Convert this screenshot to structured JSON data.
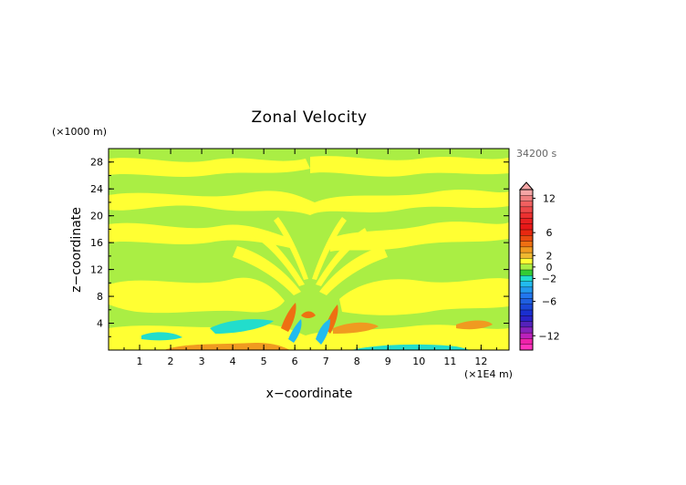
{
  "chart_data": {
    "type": "heatmap",
    "title": "Zonal Velocity",
    "xlabel": "x−coordinate",
    "ylabel": "z−coordinate",
    "x_unit": "(×1E4 m)",
    "y_unit": "(×1000 m)",
    "time_label": "34200 s",
    "xlim": [
      0,
      12.9
    ],
    "ylim": [
      0,
      30
    ],
    "x_ticks": [
      "1",
      "2",
      "3",
      "4",
      "5",
      "6",
      "7",
      "8",
      "9",
      "10",
      "11",
      "12"
    ],
    "y_ticks": [
      "4",
      "8",
      "12",
      "16",
      "20",
      "24",
      "28"
    ],
    "colorbar": {
      "labels": [
        "12",
        "6",
        "2",
        "0",
        "−2",
        "−6",
        "−12"
      ],
      "label_values": [
        12,
        6,
        2,
        0,
        -2,
        -6,
        -12
      ],
      "extend": "max",
      "levels": [
        {
          "value": 13,
          "color": "#f5a5a5"
        },
        {
          "value": 12,
          "color": "#f07f7f"
        },
        {
          "value": 11,
          "color": "#f06060"
        },
        {
          "value": 10,
          "color": "#ee4848"
        },
        {
          "value": 9,
          "color": "#ec3030"
        },
        {
          "value": 8,
          "color": "#e82020"
        },
        {
          "value": 7,
          "color": "#e81818"
        },
        {
          "value": 6,
          "color": "#e82810"
        },
        {
          "value": 5,
          "color": "#ea4a10"
        },
        {
          "value": 4,
          "color": "#ee7012"
        },
        {
          "value": 3,
          "color": "#f09a20"
        },
        {
          "value": 2,
          "color": "#f0b830"
        },
        {
          "value": 1,
          "color": "#ffff33"
        },
        {
          "value": 0,
          "color": "#aaee44"
        },
        {
          "value": -1,
          "color": "#33cc33"
        },
        {
          "value": -2,
          "color": "#22ddcc"
        },
        {
          "value": -3,
          "color": "#22bbee"
        },
        {
          "value": -4,
          "color": "#2299ee"
        },
        {
          "value": -5,
          "color": "#2277ee"
        },
        {
          "value": -6,
          "color": "#1f5fe0"
        },
        {
          "value": -7,
          "color": "#1a47d8"
        },
        {
          "value": -8,
          "color": "#1a2fd0"
        },
        {
          "value": -9,
          "color": "#2a22c8"
        },
        {
          "value": -10,
          "color": "#5522bb"
        },
        {
          "value": -11,
          "color": "#8822bb"
        },
        {
          "value": -12,
          "color": "#bb22bb"
        },
        {
          "value": -13,
          "color": "#ee22aa"
        },
        {
          "value": -14,
          "color": "#ff33bb"
        }
      ]
    }
  }
}
